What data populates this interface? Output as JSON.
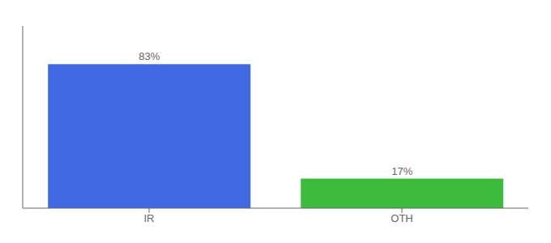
{
  "chart_data": {
    "type": "bar",
    "categories": [
      "IR",
      "OTH"
    ],
    "values": [
      83,
      17
    ],
    "colors": [
      "#4169e1",
      "#3dbb3d"
    ],
    "value_labels": [
      "83%",
      "17%"
    ],
    "data_labels": true,
    "ylim": [
      0,
      105
    ],
    "tick_labels": "x"
  }
}
